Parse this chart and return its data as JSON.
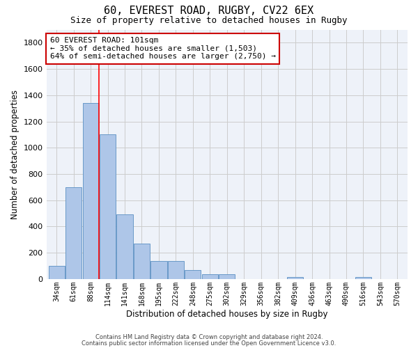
{
  "title": "60, EVEREST ROAD, RUGBY, CV22 6EX",
  "subtitle": "Size of property relative to detached houses in Rugby",
  "xlabel": "Distribution of detached houses by size in Rugby",
  "ylabel": "Number of detached properties",
  "categories": [
    "34sqm",
    "61sqm",
    "88sqm",
    "114sqm",
    "141sqm",
    "168sqm",
    "195sqm",
    "222sqm",
    "248sqm",
    "275sqm",
    "302sqm",
    "329sqm",
    "356sqm",
    "382sqm",
    "409sqm",
    "436sqm",
    "463sqm",
    "490sqm",
    "516sqm",
    "543sqm",
    "570sqm"
  ],
  "bar_heights": [
    100,
    700,
    1340,
    1100,
    490,
    270,
    135,
    135,
    70,
    35,
    35,
    0,
    0,
    0,
    15,
    0,
    0,
    0,
    15,
    0,
    0
  ],
  "bar_color": "#aec6e8",
  "bar_edge_color": "#5a8fc2",
  "ylim": [
    0,
    1900
  ],
  "yticks": [
    0,
    200,
    400,
    600,
    800,
    1000,
    1200,
    1400,
    1600,
    1800
  ],
  "annotation_text_line1": "60 EVEREST ROAD: 101sqm",
  "annotation_text_line2": "← 35% of detached houses are smaller (1,503)",
  "annotation_text_line3": "64% of semi-detached houses are larger (2,750) →",
  "footer_line1": "Contains HM Land Registry data © Crown copyright and database right 2024.",
  "footer_line2": "Contains public sector information licensed under the Open Government Licence v3.0.",
  "grid_color": "#cccccc",
  "background_color": "#eef2f9",
  "title_fontsize": 11,
  "subtitle_fontsize": 9,
  "annotation_box_color": "#cc0000",
  "red_line_x": 2.5
}
